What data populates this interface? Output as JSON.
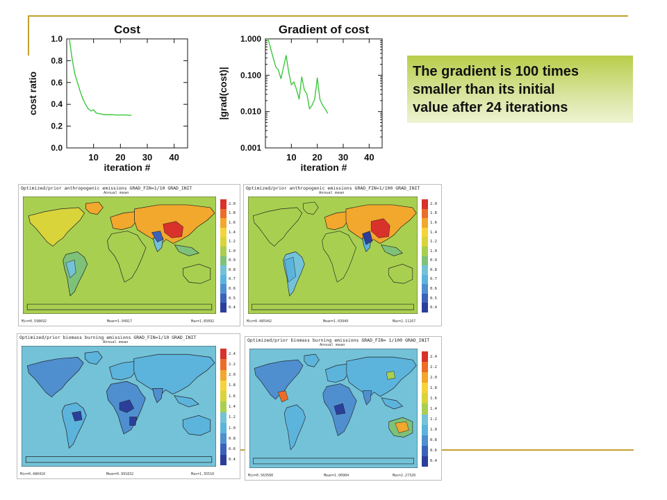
{
  "colors": {
    "accent_line": "#c4a02c",
    "series_line": "#3cc83c",
    "callout_top": "#b9cd4a",
    "callout_bottom": "#eef3d2",
    "colorscale": [
      "#2b3f9a",
      "#3b62b9",
      "#4f8fd0",
      "#5cb4dc",
      "#73c2d8",
      "#7ec27a",
      "#a9cf50",
      "#d8d43a",
      "#f4d43a",
      "#f2a72d",
      "#ec6d2a",
      "#d8322a"
    ]
  },
  "callout": {
    "lines": [
      "The gradient is 100 times",
      "smaller than its initial",
      "value after 24 iterations"
    ]
  },
  "chart_data": [
    {
      "type": "line",
      "title": "Cost",
      "xlabel": "iteration #",
      "ylabel": "cost  ratio",
      "xlim": [
        0,
        45
      ],
      "ylim": [
        0,
        1
      ],
      "xticks": [
        "10",
        "20",
        "30",
        "40"
      ],
      "yticks": [
        "0.0",
        "0.2",
        "0.4",
        "0.6",
        "0.8",
        "1.0"
      ],
      "x": [
        1,
        2,
        3,
        4,
        5,
        6,
        7,
        8,
        9,
        10,
        11,
        12,
        13,
        14,
        15,
        16,
        17,
        18,
        19,
        20,
        21,
        22,
        23,
        24
      ],
      "values": [
        1.0,
        0.82,
        0.68,
        0.6,
        0.52,
        0.45,
        0.4,
        0.36,
        0.34,
        0.35,
        0.32,
        0.315,
        0.31,
        0.305,
        0.305,
        0.305,
        0.305,
        0.302,
        0.302,
        0.302,
        0.302,
        0.302,
        0.3,
        0.3
      ]
    },
    {
      "type": "line",
      "title": "Gradient of cost",
      "xlabel": "iteration #",
      "ylabel": "|grad(cost)|",
      "yscale": "log",
      "xlim": [
        0,
        45
      ],
      "ylim": [
        0.001,
        1
      ],
      "xticks": [
        "10",
        "20",
        "30",
        "40"
      ],
      "yticks": [
        "0.001",
        "0.010",
        "0.100",
        "1.000"
      ],
      "x": [
        1,
        2,
        3,
        4,
        5,
        6,
        7,
        8,
        9,
        10,
        11,
        12,
        13,
        14,
        15,
        16,
        17,
        18,
        19,
        20,
        21,
        22,
        23,
        24
      ],
      "values": [
        1.0,
        0.55,
        0.3,
        0.17,
        0.14,
        0.08,
        0.17,
        0.35,
        0.12,
        0.055,
        0.065,
        0.04,
        0.022,
        0.09,
        0.04,
        0.03,
        0.012,
        0.015,
        0.022,
        0.085,
        0.022,
        0.015,
        0.012,
        0.009
      ]
    }
  ],
  "maps": [
    {
      "title": "Optimized/prior anthropogenic emissions GRAD_FIN=1/10 GRAD_INIT",
      "subtitle": "Annual mean",
      "footer": [
        "Min=0.598692",
        "Mean=1.04917",
        "Max=1.85092"
      ],
      "colorbar": [
        "2.0",
        "1.8",
        "1.6",
        "1.4",
        "1.2",
        "1.0",
        "0.9",
        "0.8",
        "0.7",
        "0.6",
        "0.5",
        "0.4"
      ]
    },
    {
      "title": "Optimized/prior anthropogenic emissions GRAD_FIN=1/100 GRAD_INIT",
      "subtitle": "Annual mean",
      "footer": [
        "Min=0.485442",
        "Mean=1.03949",
        "Max=2.11167"
      ],
      "colorbar": [
        "2.0",
        "1.8",
        "1.6",
        "1.4",
        "1.2",
        "1.0",
        "0.9",
        "0.8",
        "0.7",
        "0.6",
        "0.5",
        "0.4"
      ]
    },
    {
      "title": "Optimized/prior biomass burning emissions GRAD_FIN=1/10 GRAD_INIT",
      "subtitle": "Annual mean",
      "footer": [
        "Min=0.480410",
        "Mean=0.991832",
        "Max=1.35510"
      ],
      "colorbar": [
        "2.4",
        "2.2",
        "2.0",
        "1.8",
        "1.6",
        "1.4",
        "1.2",
        "1.0",
        "0.8",
        "0.6",
        "0.4"
      ]
    },
    {
      "title": "Optimized/prior biomass burning emissions GRAD_FIN= 1/100 GRAD_INIT",
      "subtitle": "Annual mean",
      "footer": [
        "Min=0.563500",
        "Mean=1.00904",
        "Max=2.27320"
      ],
      "colorbar": [
        "2.4",
        "2.2",
        "2.0",
        "1.8",
        "1.6",
        "1.4",
        "1.2",
        "1.0",
        "0.8",
        "0.6",
        "0.4"
      ]
    }
  ]
}
